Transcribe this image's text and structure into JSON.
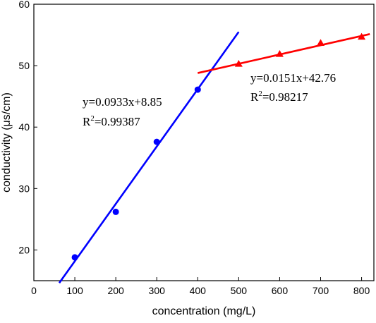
{
  "chart_data": {
    "type": "scatter",
    "xlabel": "concentration (mg/L)",
    "ylabel": "conductivity (μs/cm)",
    "xlim": [
      0,
      830
    ],
    "ylim": [
      15,
      60
    ],
    "xticks": [
      0,
      100,
      200,
      300,
      400,
      500,
      600,
      700,
      800
    ],
    "yticks": [
      20,
      30,
      40,
      50,
      60
    ],
    "grid": false,
    "series": [
      {
        "color": "#0000ff",
        "marker": "circle",
        "x": [
          100,
          200,
          300,
          400
        ],
        "y": [
          18.8,
          26.2,
          37.6,
          46.1
        ],
        "fit": {
          "slope": 0.0933,
          "intercept": 8.85,
          "x_range": [
            62,
            500
          ]
        },
        "equation": "y=0.0933x+8.85",
        "r2_label": "R",
        "r2_exp": "2",
        "r2_value": "=0.99387"
      },
      {
        "color": "#ff0000",
        "marker": "triangle",
        "x": [
          500,
          600,
          700,
          800
        ],
        "y": [
          50.3,
          51.9,
          53.7,
          54.7
        ],
        "fit": {
          "slope": 0.0151,
          "intercept": 42.76,
          "x_range": [
            400,
            820
          ]
        },
        "equation": "y=0.0151x+42.76",
        "r2_label": "R",
        "r2_exp": "2",
        "r2_value": "=0.98217"
      }
    ]
  }
}
